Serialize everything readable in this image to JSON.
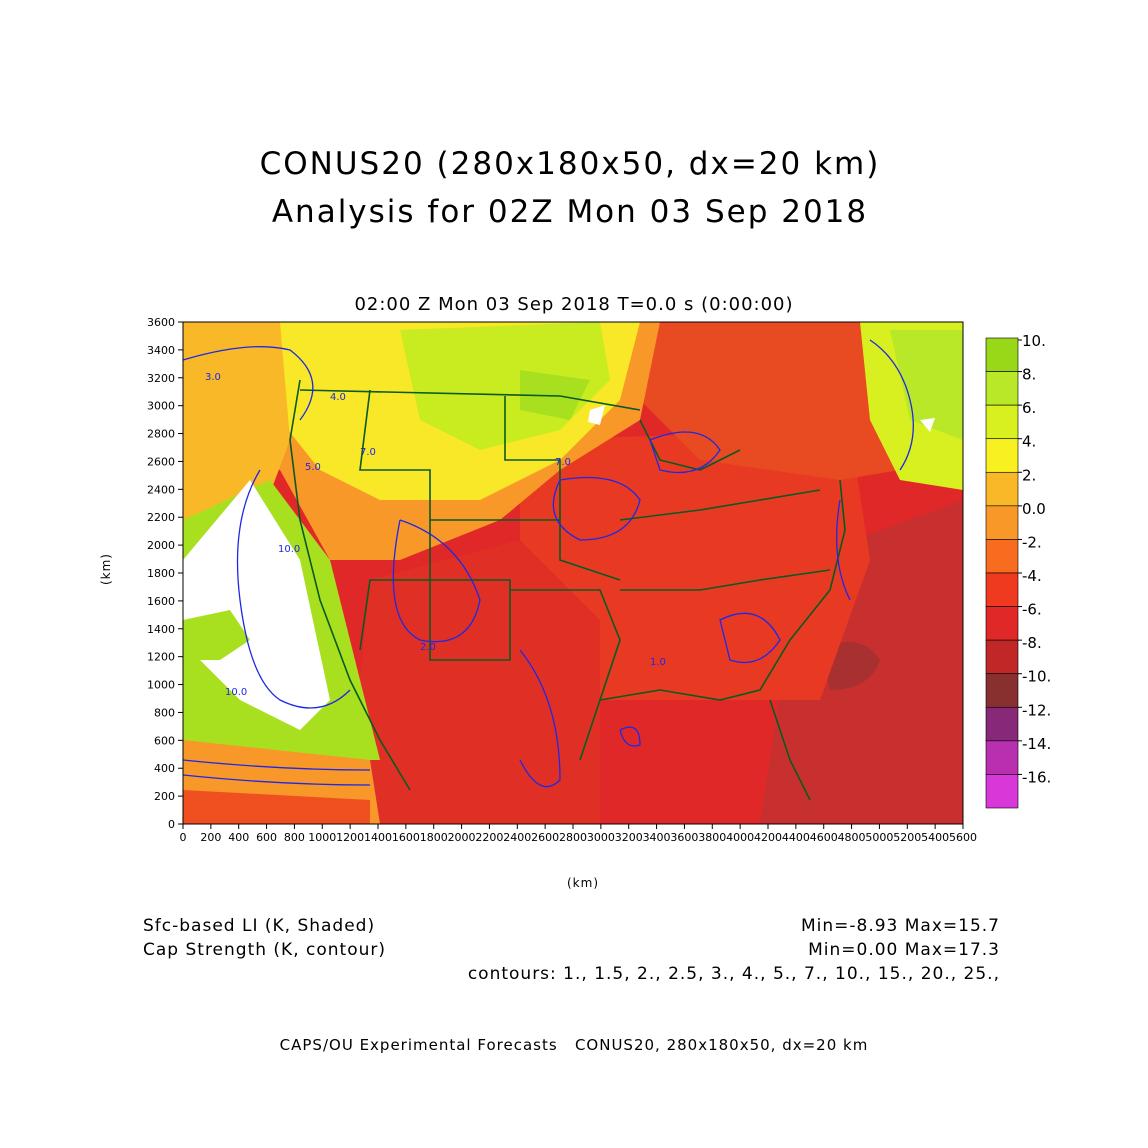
{
  "title_line1": "CONUS20 (280x180x50, dx=20 km)",
  "title_line2": "Analysis for 02Z Mon 03 Sep 2018",
  "subtitle": "02:00 Z Mon 03 Sep 2018    T=0.0 s (0:00:00)",
  "axes": {
    "x_label": "(km)",
    "y_label": "(km)",
    "x_ticks": [
      "0",
      "200",
      "400",
      "600",
      "800",
      "1000",
      "1200",
      "1400",
      "1600",
      "1800",
      "2000",
      "2200",
      "2400",
      "2600",
      "2800",
      "3000",
      "3200",
      "3400",
      "3600",
      "3800",
      "4000",
      "4200",
      "4400",
      "4600",
      "4800",
      "5000",
      "5200",
      "5400",
      "5600"
    ],
    "y_ticks": [
      "0",
      "200",
      "400",
      "600",
      "800",
      "1000",
      "1200",
      "1400",
      "1600",
      "1800",
      "2000",
      "2200",
      "2400",
      "2600",
      "2800",
      "3000",
      "3200",
      "3400",
      "3600"
    ]
  },
  "colorbar": {
    "labels": [
      "10.",
      "8.",
      "6.",
      "4.",
      "2.",
      "0.0",
      "-2.",
      "-4.",
      "-6.",
      "-8.",
      "-10.",
      "-12.",
      "-14.",
      "-16."
    ],
    "colors": [
      "#98d818",
      "#b8e828",
      "#d8f020",
      "#f8f020",
      "#f8b828",
      "#f89828",
      "#f86c20",
      "#f03a20",
      "#e02828",
      "#c02828",
      "#883030",
      "#882878",
      "#b830b0",
      "#d838d8"
    ]
  },
  "legend": {
    "shaded_label": "Sfc-based LI (K, Shaded)",
    "shaded_minmax": "Min=-8.93 Max=15.7",
    "contour_label": "Cap Strength (K, contour)",
    "contour_minmax": "Min=0.00 Max=17.3",
    "contours": "contours: 1., 1.5, 2., 2.5, 3., 4., 5., 7., 10., 15., 20., 25.,"
  },
  "credit": "CAPS/OU Experimental Forecasts   CONUS20, 280x180x50, dx=20 km",
  "map_labels": [
    "10.0",
    "10.0",
    "4.0",
    "5.0",
    "7.0",
    "7.0",
    "1.0",
    "2.0",
    "3.0"
  ]
}
